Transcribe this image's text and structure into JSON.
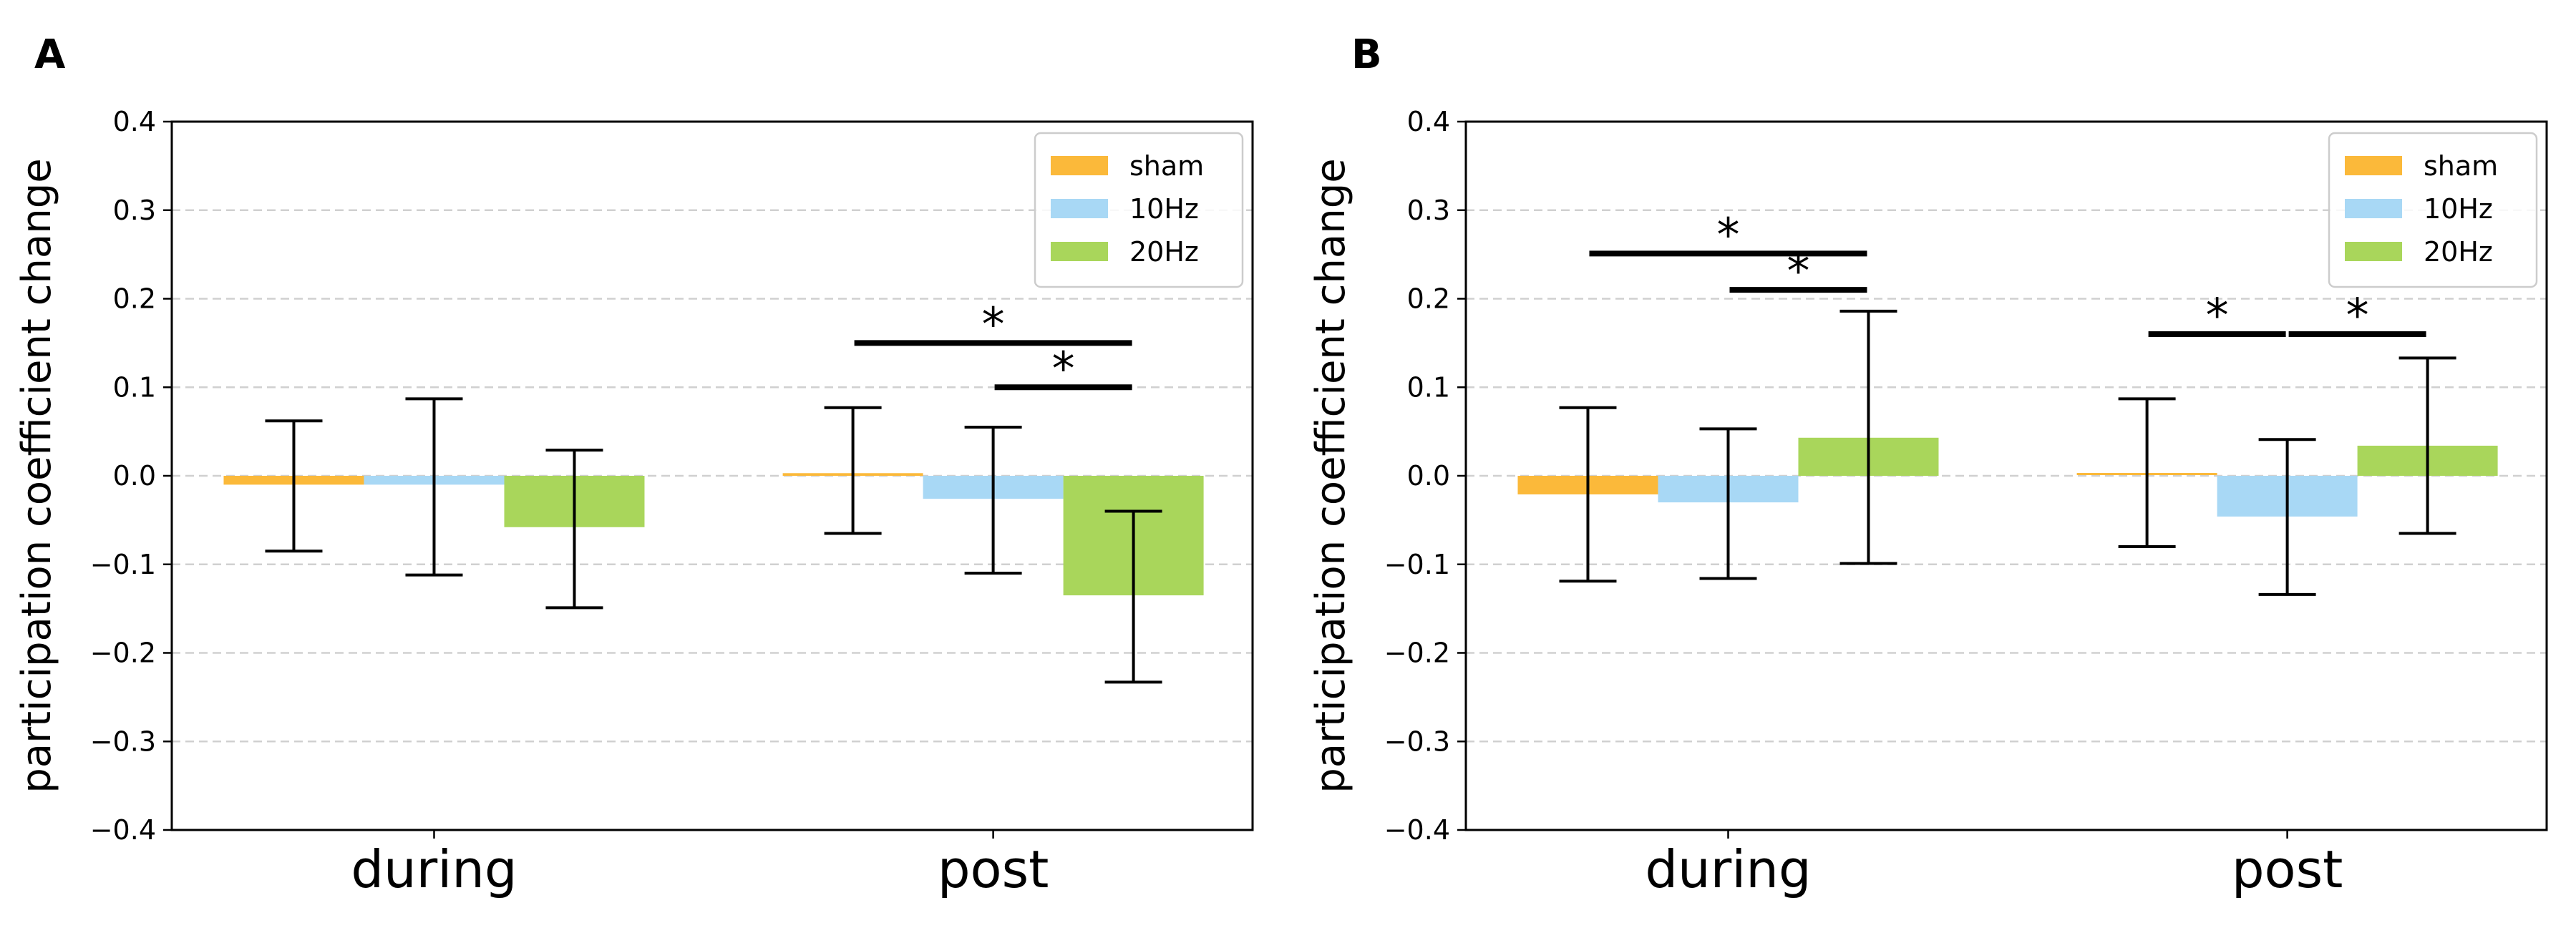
{
  "figure": {
    "panel_labels": [
      "A",
      "B"
    ]
  },
  "chart_data": [
    {
      "panel": "A",
      "type": "bar",
      "title": "",
      "xlabel": "",
      "ylabel": "participation coefficient change",
      "categories": [
        "during",
        "post"
      ],
      "ylim": [
        -0.4,
        0.4
      ],
      "yticks": [
        -0.4,
        -0.3,
        -0.2,
        -0.1,
        0.0,
        0.1,
        0.2,
        0.3,
        0.4
      ],
      "ytick_labels": [
        "−0.4",
        "−0.3",
        "−0.2",
        "−0.1",
        "0.0",
        "0.1",
        "0.2",
        "0.3",
        "0.4"
      ],
      "grid": "horizontal dashed",
      "legend_position": "top-right",
      "series": [
        {
          "name": "sham",
          "color": "#FBB93A",
          "values": [
            -0.01,
            0.003
          ],
          "err_low": [
            -0.085,
            -0.065
          ],
          "err_high": [
            0.062,
            0.077
          ]
        },
        {
          "name": "10Hz",
          "color": "#A8D8F5",
          "values": [
            -0.01,
            -0.026
          ],
          "err_low": [
            -0.112,
            -0.11
          ],
          "err_high": [
            0.087,
            0.055
          ]
        },
        {
          "name": "20Hz",
          "color": "#A9D65B",
          "values": [
            -0.058,
            -0.135
          ],
          "err_low": [
            -0.149,
            -0.233
          ],
          "err_high": [
            0.029,
            -0.04
          ]
        }
      ],
      "annotations": [
        {
          "category": "post",
          "from_series": "sham",
          "to_series": "20Hz",
          "y": 0.15,
          "label": "*"
        },
        {
          "category": "post",
          "from_series": "10Hz",
          "to_series": "20Hz",
          "y": 0.1,
          "label": "*"
        }
      ]
    },
    {
      "panel": "B",
      "type": "bar",
      "title": "",
      "xlabel": "",
      "ylabel": "participation coefficient change",
      "categories": [
        "during",
        "post"
      ],
      "ylim": [
        -0.4,
        0.4
      ],
      "yticks": [
        -0.4,
        -0.3,
        -0.2,
        -0.1,
        0.0,
        0.1,
        0.2,
        0.3,
        0.4
      ],
      "ytick_labels": [
        "−0.4",
        "−0.3",
        "−0.2",
        "−0.1",
        "0.0",
        "0.1",
        "0.2",
        "0.3",
        "0.4"
      ],
      "grid": "horizontal dashed",
      "legend_position": "top-right",
      "series": [
        {
          "name": "sham",
          "color": "#FBB93A",
          "values": [
            -0.021,
            0.002
          ],
          "err_low": [
            -0.119,
            -0.08
          ],
          "err_high": [
            0.077,
            0.087
          ]
        },
        {
          "name": "10Hz",
          "color": "#A8D8F5",
          "values": [
            -0.03,
            -0.046
          ],
          "err_low": [
            -0.116,
            -0.134
          ],
          "err_high": [
            0.053,
            0.041
          ]
        },
        {
          "name": "20Hz",
          "color": "#A9D65B",
          "values": [
            0.043,
            0.034
          ],
          "err_low": [
            -0.099,
            -0.065
          ],
          "err_high": [
            0.186,
            0.133
          ]
        }
      ],
      "annotations": [
        {
          "category": "during",
          "from_series": "sham",
          "to_series": "20Hz",
          "y": 0.251,
          "label": "*"
        },
        {
          "category": "during",
          "from_series": "10Hz",
          "to_series": "20Hz",
          "y": 0.21,
          "label": "*"
        },
        {
          "category": "post",
          "from_series": "sham",
          "to_series": "10Hz",
          "y": 0.16,
          "label": "*"
        },
        {
          "category": "post",
          "from_series": "10Hz",
          "to_series": "20Hz",
          "y": 0.16,
          "label": "*"
        }
      ]
    }
  ]
}
